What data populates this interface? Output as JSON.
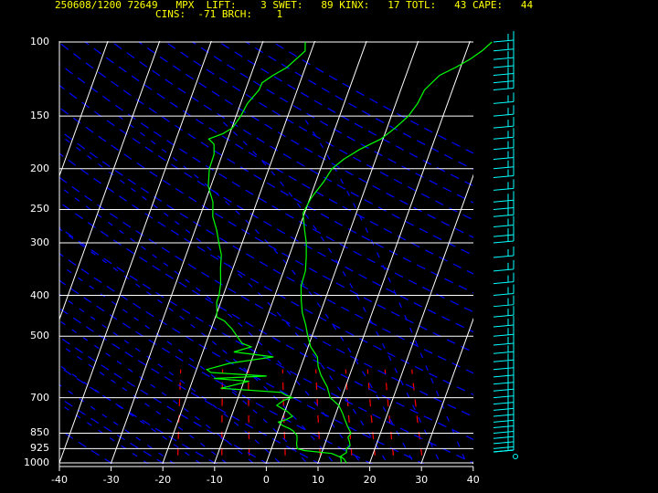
{
  "header": {
    "line1": "250608/1200 72649   MPX  LIFT:    3 SWET:   89 KINX:   17 TOTL:   43 CAPE:   44",
    "line2": "CINS:  -71 BRCH:    1"
  },
  "colors": {
    "background": "#000000",
    "text": "#ffff00",
    "isobar": "#ffffff",
    "isotherm": "#ffffff",
    "dry_adiabat": "#0000ff",
    "moist_adiabat": "#0000ff",
    "mixing_ratio": "#ff0000",
    "temperature": "#00ff00",
    "dewpoint": "#00ff00",
    "wind": "#00ffff"
  },
  "chart_data": {
    "type": "skew-t",
    "p_ticks": [
      100,
      150,
      200,
      250,
      300,
      400,
      500,
      700,
      850,
      925,
      1000
    ],
    "t_ticks": [
      -40,
      -30,
      -20,
      -10,
      0,
      10,
      20,
      30,
      40
    ],
    "p_range": [
      100,
      1000
    ],
    "t_range": [
      -40,
      40
    ],
    "temperature": [
      [
        1000,
        15.5
      ],
      [
        980,
        14.8
      ],
      [
        965,
        13.9
      ],
      [
        945,
        14.8
      ],
      [
        925,
        14.5
      ],
      [
        910,
        15.0
      ],
      [
        890,
        14.6
      ],
      [
        870,
        14.0
      ],
      [
        850,
        14.3
      ],
      [
        820,
        13.2
      ],
      [
        790,
        12.2
      ],
      [
        760,
        11.2
      ],
      [
        730,
        10.0
      ],
      [
        700,
        7.8
      ],
      [
        660,
        6.5
      ],
      [
        620,
        4.5
      ],
      [
        590,
        3.3
      ],
      [
        560,
        2.5
      ],
      [
        530,
        0.5
      ],
      [
        500,
        -0.8
      ],
      [
        470,
        -2.0
      ],
      [
        440,
        -3.5
      ],
      [
        410,
        -4.6
      ],
      [
        380,
        -5.6
      ],
      [
        350,
        -5.8
      ],
      [
        325,
        -6.6
      ],
      [
        300,
        -7.6
      ],
      [
        280,
        -8.8
      ],
      [
        255,
        -10.3
      ],
      [
        235,
        -9.8
      ],
      [
        215,
        -8.5
      ],
      [
        200,
        -7.8
      ],
      [
        190,
        -6.2
      ],
      [
        180,
        -3.8
      ],
      [
        170,
        -0.4
      ],
      [
        160,
        1.6
      ],
      [
        150,
        3.3
      ],
      [
        140,
        4.2
      ],
      [
        130,
        4.6
      ],
      [
        120,
        6.5
      ],
      [
        115,
        9.0
      ],
      [
        110,
        11.2
      ],
      [
        105,
        13.0
      ],
      [
        100,
        14.3
      ]
    ],
    "dewpoint": [
      [
        1000,
        14.5
      ],
      [
        970,
        14.0
      ],
      [
        950,
        12.0
      ],
      [
        935,
        6.5
      ],
      [
        925,
        5.0
      ],
      [
        900,
        4.5
      ],
      [
        880,
        4.3
      ],
      [
        860,
        4.0
      ],
      [
        840,
        3.0
      ],
      [
        830,
        2.2
      ],
      [
        815,
        0.5
      ],
      [
        800,
        -0.5
      ],
      [
        790,
        0.8
      ],
      [
        775,
        1.8
      ],
      [
        755,
        0.5
      ],
      [
        730,
        -2.0
      ],
      [
        710,
        -1.0
      ],
      [
        700,
        0.5
      ],
      [
        690,
        -1.0
      ],
      [
        680,
        -2.0
      ],
      [
        665,
        -14.0
      ],
      [
        655,
        -12.0
      ],
      [
        640,
        -9.0
      ],
      [
        630,
        -16.0
      ],
      [
        622,
        -6.0
      ],
      [
        610,
        -17.0
      ],
      [
        600,
        -18.0
      ],
      [
        580,
        -14.0
      ],
      [
        560,
        -6.0
      ],
      [
        545,
        -14.0
      ],
      [
        530,
        -11.0
      ],
      [
        520,
        -13.0
      ],
      [
        500,
        -14.5
      ],
      [
        480,
        -16.0
      ],
      [
        460,
        -18.0
      ],
      [
        450,
        -19.8
      ],
      [
        440,
        -20.0
      ],
      [
        430,
        -20.3
      ],
      [
        415,
        -20.8
      ],
      [
        400,
        -20.8
      ],
      [
        375,
        -21.3
      ],
      [
        345,
        -22.4
      ],
      [
        320,
        -23.2
      ],
      [
        300,
        -24.5
      ],
      [
        280,
        -25.8
      ],
      [
        260,
        -27.5
      ],
      [
        240,
        -28.5
      ],
      [
        220,
        -30.5
      ],
      [
        200,
        -31.5
      ],
      [
        185,
        -31.6
      ],
      [
        175,
        -32.3
      ],
      [
        170,
        -33.7
      ],
      [
        165,
        -31.3
      ],
      [
        160,
        -29.9
      ],
      [
        150,
        -29.1
      ],
      [
        140,
        -28.7
      ],
      [
        130,
        -27.4
      ],
      [
        125,
        -27.3
      ],
      [
        120,
        -25.7
      ],
      [
        115,
        -23.6
      ],
      [
        110,
        -22.4
      ],
      [
        105,
        -21.2
      ],
      [
        100,
        -21.8
      ]
    ],
    "wind_levels_hpa": [
      1000,
      975,
      950,
      925,
      900,
      875,
      850,
      825,
      800,
      775,
      750,
      725,
      700,
      675,
      650,
      625,
      600,
      575,
      550,
      525,
      500,
      475,
      450,
      425,
      400,
      375,
      350,
      325,
      300,
      290,
      275,
      260,
      250,
      240,
      225,
      210,
      200,
      190,
      180,
      170,
      160,
      150,
      140,
      130,
      125,
      120,
      115,
      110,
      105,
      100
    ]
  }
}
